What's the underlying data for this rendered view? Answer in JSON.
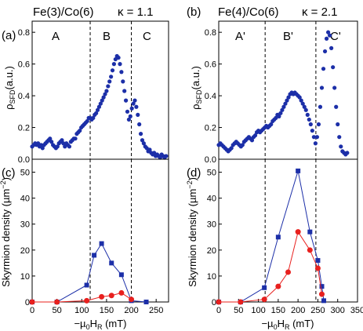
{
  "chart_data": [
    {
      "panel": "(a)",
      "type": "scatter",
      "title": "Fe(3)/Co(6)",
      "annotation": "κ = 1.1",
      "ylabel": "ρSFD(a.u.)",
      "yticks": [
        "0.0",
        "0.2",
        "0.4",
        "0.6",
        "0.8"
      ],
      "ylim": [
        0,
        0.87
      ],
      "xlim": [
        0,
        275
      ],
      "regions": [
        "A",
        "B",
        "C"
      ],
      "dashed_lines": [
        117,
        200
      ],
      "series": [
        {
          "color": "#1c2fa8",
          "points": [
            [
              0,
              0.08
            ],
            [
              3,
              0.09
            ],
            [
              6,
              0.1
            ],
            [
              9,
              0.09
            ],
            [
              12,
              0.1
            ],
            [
              15,
              0.08
            ],
            [
              18,
              0.09
            ],
            [
              21,
              0.07
            ],
            [
              24,
              0.09
            ],
            [
              27,
              0.1
            ],
            [
              30,
              0.11
            ],
            [
              33,
              0.12
            ],
            [
              36,
              0.13
            ],
            [
              39,
              0.11
            ],
            [
              42,
              0.09
            ],
            [
              45,
              0.08
            ],
            [
              48,
              0.07
            ],
            [
              51,
              0.08
            ],
            [
              54,
              0.1
            ],
            [
              57,
              0.11
            ],
            [
              60,
              0.12
            ],
            [
              63,
              0.1
            ],
            [
              66,
              0.08
            ],
            [
              69,
              0.1
            ],
            [
              72,
              0.09
            ],
            [
              75,
              0.08
            ],
            [
              78,
              0.11
            ],
            [
              81,
              0.12
            ],
            [
              84,
              0.13
            ],
            [
              87,
              0.13
            ],
            [
              90,
              0.16
            ],
            [
              93,
              0.17
            ],
            [
              96,
              0.18
            ],
            [
              99,
              0.2
            ],
            [
              102,
              0.21
            ],
            [
              105,
              0.22
            ],
            [
              108,
              0.23
            ],
            [
              111,
              0.24
            ],
            [
              114,
              0.26
            ],
            [
              117,
              0.26
            ],
            [
              120,
              0.25
            ],
            [
              123,
              0.26
            ],
            [
              126,
              0.28
            ],
            [
              129,
              0.29
            ],
            [
              132,
              0.31
            ],
            [
              135,
              0.33
            ],
            [
              138,
              0.35
            ],
            [
              141,
              0.37
            ],
            [
              144,
              0.39
            ],
            [
              147,
              0.41
            ],
            [
              150,
              0.43
            ],
            [
              153,
              0.46
            ],
            [
              156,
              0.49
            ],
            [
              159,
              0.52
            ],
            [
              162,
              0.56
            ],
            [
              165,
              0.6
            ],
            [
              168,
              0.63
            ],
            [
              171,
              0.65
            ],
            [
              174,
              0.64
            ],
            [
              177,
              0.6
            ],
            [
              180,
              0.55
            ],
            [
              183,
              0.49
            ],
            [
              186,
              0.43
            ],
            [
              189,
              0.37
            ],
            [
              192,
              0.3
            ],
            [
              195,
              0.25
            ],
            [
              198,
              0.27
            ],
            [
              201,
              0.32
            ],
            [
              204,
              0.35
            ],
            [
              207,
              0.37
            ],
            [
              210,
              0.33
            ],
            [
              213,
              0.28
            ],
            [
              216,
              0.22
            ],
            [
              219,
              0.16
            ],
            [
              222,
              0.12
            ],
            [
              225,
              0.1
            ],
            [
              228,
              0.08
            ],
            [
              231,
              0.07
            ],
            [
              234,
              0.05
            ],
            [
              237,
              0.06
            ],
            [
              240,
              0.04
            ],
            [
              243,
              0.03
            ],
            [
              246,
              0.04
            ],
            [
              249,
              0.02
            ],
            [
              252,
              0.03
            ],
            [
              255,
              0.02
            ],
            [
              258,
              0.01
            ],
            [
              261,
              0.03
            ],
            [
              264,
              0.02
            ],
            [
              267,
              0.01
            ],
            [
              270,
              0.02
            ]
          ]
        }
      ]
    },
    {
      "panel": "(b)",
      "type": "scatter",
      "title": "Fe(4)/Co(6)",
      "annotation": "κ = 2.1",
      "ylabel": "ρSFD(a.u.)",
      "yticks": [
        "0.0",
        "0.2",
        "0.4",
        "0.6",
        "0.8"
      ],
      "ylim": [
        0,
        0.87
      ],
      "xlim": [
        0,
        350
      ],
      "regions": [
        "A'",
        "B'",
        "C'"
      ],
      "dashed_lines": [
        117,
        245
      ],
      "series": [
        {
          "color": "#1c2fa8",
          "points": [
            [
              0,
              0.09
            ],
            [
              4,
              0.1
            ],
            [
              8,
              0.09
            ],
            [
              12,
              0.08
            ],
            [
              16,
              0.07
            ],
            [
              20,
              0.06
            ],
            [
              24,
              0.05
            ],
            [
              28,
              0.06
            ],
            [
              32,
              0.07
            ],
            [
              36,
              0.09
            ],
            [
              40,
              0.1
            ],
            [
              44,
              0.11
            ],
            [
              48,
              0.1
            ],
            [
              52,
              0.09
            ],
            [
              56,
              0.08
            ],
            [
              60,
              0.09
            ],
            [
              64,
              0.11
            ],
            [
              68,
              0.12
            ],
            [
              72,
              0.13
            ],
            [
              76,
              0.14
            ],
            [
              80,
              0.13
            ],
            [
              84,
              0.12
            ],
            [
              88,
              0.14
            ],
            [
              92,
              0.15
            ],
            [
              96,
              0.17
            ],
            [
              100,
              0.18
            ],
            [
              104,
              0.17
            ],
            [
              108,
              0.18
            ],
            [
              112,
              0.19
            ],
            [
              116,
              0.2
            ],
            [
              120,
              0.21
            ],
            [
              124,
              0.2
            ],
            [
              128,
              0.21
            ],
            [
              132,
              0.22
            ],
            [
              136,
              0.24
            ],
            [
              140,
              0.25
            ],
            [
              144,
              0.26
            ],
            [
              148,
              0.28
            ],
            [
              152,
              0.27
            ],
            [
              156,
              0.29
            ],
            [
              160,
              0.31
            ],
            [
              164,
              0.33
            ],
            [
              168,
              0.35
            ],
            [
              172,
              0.37
            ],
            [
              176,
              0.39
            ],
            [
              180,
              0.41
            ],
            [
              184,
              0.42
            ],
            [
              188,
              0.41
            ],
            [
              192,
              0.42
            ],
            [
              196,
              0.41
            ],
            [
              200,
              0.4
            ],
            [
              204,
              0.39
            ],
            [
              208,
              0.37
            ],
            [
              212,
              0.35
            ],
            [
              216,
              0.33
            ],
            [
              220,
              0.31
            ],
            [
              224,
              0.28
            ],
            [
              228,
              0.25
            ],
            [
              232,
              0.22
            ],
            [
              236,
              0.18
            ],
            [
              240,
              0.14
            ],
            [
              244,
              0.1
            ],
            [
              248,
              0.14
            ],
            [
              252,
              0.22
            ],
            [
              256,
              0.33
            ],
            [
              260,
              0.45
            ],
            [
              264,
              0.57
            ],
            [
              268,
              0.68
            ],
            [
              272,
              0.76
            ],
            [
              276,
              0.8
            ],
            [
              280,
              0.78
            ],
            [
              284,
              0.7
            ],
            [
              288,
              0.58
            ],
            [
              292,
              0.45
            ],
            [
              296,
              0.33
            ],
            [
              300,
              0.22
            ],
            [
              304,
              0.14
            ],
            [
              308,
              0.08
            ],
            [
              312,
              0.05
            ],
            [
              316,
              0.04
            ],
            [
              320,
              0.03
            ],
            [
              324,
              0.04
            ]
          ]
        }
      ]
    },
    {
      "panel": "(c)",
      "type": "line",
      "ylabel": "Skyrmion density (µm⁻²)",
      "xlabel": "−µ0HR (mT)",
      "xticks": [
        "0",
        "50",
        "100",
        "150",
        "200",
        "250"
      ],
      "yticks": [
        "0",
        "10",
        "20",
        "30",
        "40",
        "50"
      ],
      "xlim": [
        0,
        275
      ],
      "ylim": [
        0,
        55
      ],
      "dashed_lines": [
        117,
        200
      ],
      "series": [
        {
          "color": "#1c2fa8",
          "marker": "square",
          "x": [
            0,
            50,
            110,
            125,
            140,
            160,
            180,
            200,
            230
          ],
          "y": [
            0,
            0,
            6.5,
            18,
            22.5,
            15,
            10.5,
            0.5,
            0
          ]
        },
        {
          "color": "#e8201e",
          "marker": "circle",
          "x": [
            0,
            50,
            110,
            140,
            160,
            180,
            200
          ],
          "y": [
            0,
            0,
            0.5,
            2,
            2.5,
            3.5,
            1
          ]
        }
      ]
    },
    {
      "panel": "(d)",
      "type": "line",
      "ylabel": "Skyrmion density (µm⁻²)",
      "xlabel": "−µ0HR (mT)",
      "xticks": [
        "0",
        "50",
        "100",
        "150",
        "200",
        "250",
        "300",
        "350"
      ],
      "yticks": [
        "0",
        "10",
        "20",
        "30",
        "40",
        "50"
      ],
      "xlim": [
        0,
        350
      ],
      "ylim": [
        0,
        55
      ],
      "dashed_lines": [
        117,
        245
      ],
      "series": [
        {
          "color": "#1c2fa8",
          "marker": "square",
          "x": [
            0,
            55,
            115,
            150,
            200,
            230,
            250,
            260,
            265
          ],
          "y": [
            0,
            0,
            5.5,
            25,
            50.5,
            27,
            16,
            6,
            0.5
          ]
        },
        {
          "color": "#e8201e",
          "marker": "circle",
          "x": [
            0,
            55,
            115,
            150,
            175,
            200,
            230,
            250,
            260
          ],
          "y": [
            0,
            0,
            1,
            6,
            11.5,
            27,
            20,
            13,
            3
          ]
        }
      ]
    }
  ]
}
